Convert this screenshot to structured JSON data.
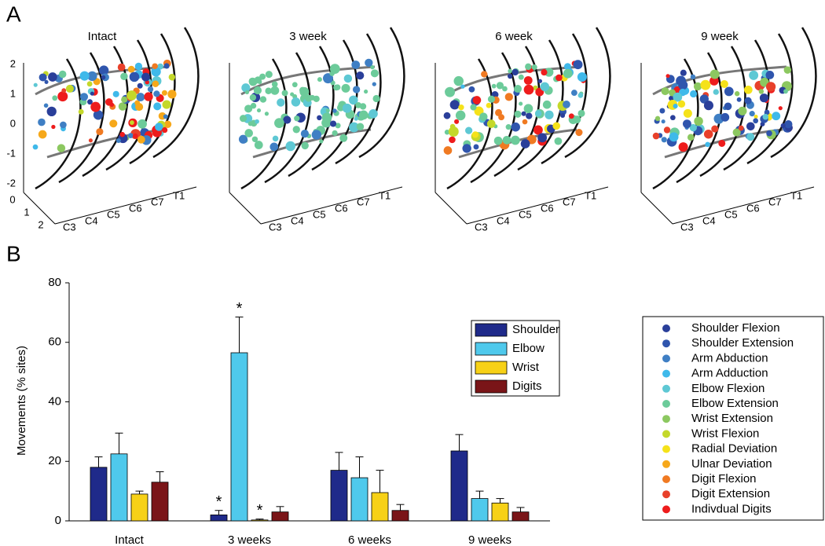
{
  "panel_a": {
    "label": "A",
    "panels": [
      {
        "title": "Intact"
      },
      {
        "title": "3 week"
      },
      {
        "title": "6 week"
      },
      {
        "title": "9 week"
      }
    ],
    "z_ticks": [
      2,
      1,
      0,
      -1,
      -2
    ],
    "depth_ticks": [
      0,
      1,
      2
    ],
    "segments": [
      "C3",
      "C4",
      "C5",
      "C6",
      "C7",
      "T1"
    ]
  },
  "movement_legend": {
    "entries": [
      {
        "name": "Shoulder Flexion",
        "color": "#2a3f9a"
      },
      {
        "name": "Shoulder Extension",
        "color": "#2f55ad"
      },
      {
        "name": "Arm Abduction",
        "color": "#3f7fc4"
      },
      {
        "name": "Arm Adduction",
        "color": "#3fb9ea"
      },
      {
        "name": "Elbow Flexion",
        "color": "#5ec8d4"
      },
      {
        "name": "Elbow Extension",
        "color": "#6ccb9a"
      },
      {
        "name": "Wrist Extension",
        "color": "#8cc860"
      },
      {
        "name": "Wrist Flexion",
        "color": "#c4d82a"
      },
      {
        "name": "Radial Deviation",
        "color": "#f5e21a"
      },
      {
        "name": "Ulnar Deviation",
        "color": "#f6a81a"
      },
      {
        "name": "Digit Flexion",
        "color": "#f07a22"
      },
      {
        "name": "Digit Extension",
        "color": "#e8402a"
      },
      {
        "name": "Indivdual Digits",
        "color": "#ee1c1c"
      }
    ]
  },
  "chart_data": {
    "type": "bar",
    "label": "B",
    "ylabel": "Movements (% sites)",
    "categories": [
      "Intact",
      "3 weeks",
      "6 weeks",
      "9 weeks"
    ],
    "series": [
      {
        "name": "Shoulder",
        "color": "#1f2a8a",
        "values": [
          18,
          2,
          17,
          23.5
        ],
        "errors": [
          3.5,
          1.5,
          6,
          5.5
        ],
        "markers": [
          null,
          "*",
          null,
          null
        ]
      },
      {
        "name": "Elbow",
        "color": "#4fc9ec",
        "values": [
          22.5,
          56.5,
          14.5,
          7.5
        ],
        "errors": [
          7,
          12,
          7,
          2.5
        ],
        "markers": [
          null,
          "*",
          null,
          null
        ]
      },
      {
        "name": "Wrist",
        "color": "#f7d117",
        "values": [
          9,
          0.3,
          9.5,
          6
        ],
        "errors": [
          1,
          0.3,
          7.5,
          1.5
        ],
        "markers": [
          null,
          "*",
          null,
          null
        ]
      },
      {
        "name": "Digits",
        "color": "#7a1518",
        "values": [
          13,
          3,
          3.5,
          3
        ],
        "errors": [
          3.5,
          1.8,
          2,
          1.5
        ],
        "markers": [
          null,
          null,
          null,
          null
        ]
      }
    ],
    "ylim": [
      0,
      80
    ],
    "yticks": [
      0,
      20,
      40,
      60,
      80
    ]
  }
}
